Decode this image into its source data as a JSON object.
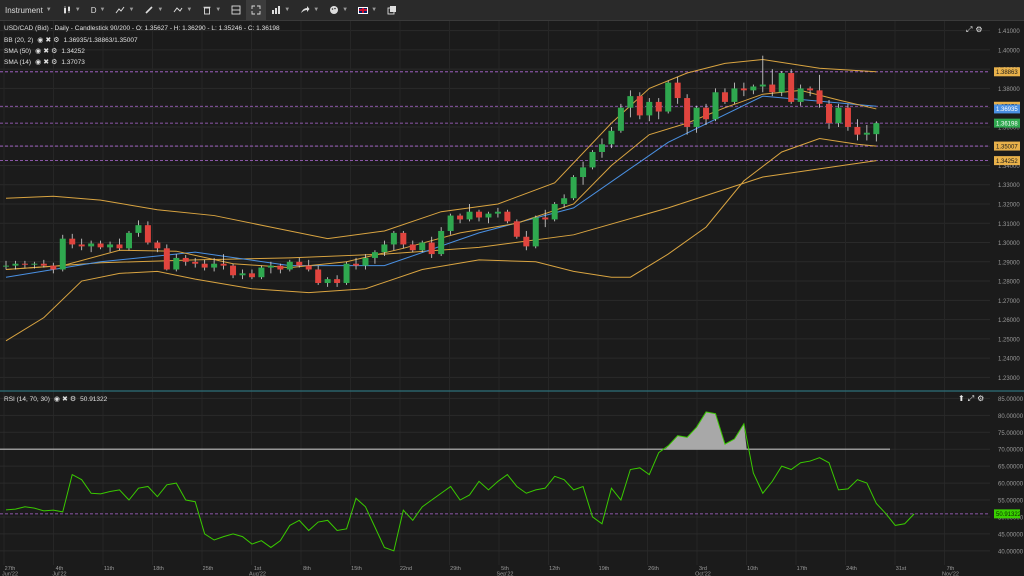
{
  "toolbar": {
    "instrument_label": "Instrument",
    "timeframe_label": "D",
    "colors": {
      "bg": "#2a2a2a"
    }
  },
  "price_legend": {
    "symbol_line": "USD/CAD (Bid) - Daily - Candlestick 90/200 - O: 1.35627 - H: 1.36290 - L: 1.35246 - C: 1.36198",
    "indicators": [
      {
        "name": "BB (20, 2)",
        "value": "1.36935/1.38863/1.35007"
      },
      {
        "name": "SMA (50)",
        "value": "1.34252"
      },
      {
        "name": "SMA (14)",
        "value": "1.37073"
      }
    ]
  },
  "rsi_legend": {
    "name": "RSI (14, 70, 30)",
    "value": "50.91322"
  },
  "price_axis": {
    "ticks": [
      "1.41000",
      "1.40000",
      "1.39000",
      "1.38000",
      "1.37000",
      "1.36000",
      "1.35000",
      "1.34000",
      "1.33000",
      "1.32000",
      "1.31000",
      "1.30000",
      "1.29000",
      "1.28000",
      "1.27000",
      "1.26000",
      "1.25000",
      "1.24000",
      "1.23000"
    ],
    "badges": [
      {
        "text": "1.38863",
        "price": 1.38863,
        "color": "#e8b14a",
        "fg": "#1a1a1a"
      },
      {
        "text": "1.37073",
        "price": 1.37073,
        "color": "#e8b14a",
        "fg": "#1a1a1a"
      },
      {
        "text": "1.36935",
        "price": 1.36935,
        "color": "#4a90e2",
        "fg": "#ffffff"
      },
      {
        "text": "1.36198",
        "price": 1.36198,
        "color": "#2fa84f",
        "fg": "#ffffff"
      },
      {
        "text": "1.35007",
        "price": 1.35007,
        "color": "#e8b14a",
        "fg": "#1a1a1a"
      },
      {
        "text": "1.34252",
        "price": 1.34252,
        "color": "#e8b14a",
        "fg": "#1a1a1a"
      }
    ]
  },
  "rsi_axis": {
    "ticks": [
      "85.00000",
      "80.00000",
      "75.00000",
      "70.00000",
      "65.00000",
      "60.00000",
      "55.00000",
      "50.00000",
      "45.00000",
      "40.00000"
    ],
    "badge": {
      "text": "50.91322",
      "value": 50.91322,
      "color": "#39d000"
    }
  },
  "time_axis": {
    "ticks": [
      {
        "day": "27th",
        "month": "Jun'22"
      },
      {
        "day": "4th",
        "month": "Jul'22"
      },
      {
        "day": "11th",
        "month": ""
      },
      {
        "day": "18th",
        "month": ""
      },
      {
        "day": "25th",
        "month": ""
      },
      {
        "day": "1st",
        "month": "Aug'22"
      },
      {
        "day": "8th",
        "month": ""
      },
      {
        "day": "15th",
        "month": ""
      },
      {
        "day": "22nd",
        "month": ""
      },
      {
        "day": "29th",
        "month": ""
      },
      {
        "day": "5th",
        "month": "Sep'22"
      },
      {
        "day": "12th",
        "month": ""
      },
      {
        "day": "19th",
        "month": ""
      },
      {
        "day": "26th",
        "month": ""
      },
      {
        "day": "3rd",
        "month": "Oct'22"
      },
      {
        "day": "10th",
        "month": ""
      },
      {
        "day": "17th",
        "month": ""
      },
      {
        "day": "24th",
        "month": ""
      },
      {
        "day": "31st",
        "month": ""
      },
      {
        "day": "7th",
        "month": "Nov'22"
      }
    ]
  },
  "chart_data": [
    {
      "type": "candlestick",
      "title": "USD/CAD (Bid) - Daily - Candlestick",
      "ylim": [
        1.225,
        1.415
      ],
      "candles": [
        [
          1.2875,
          1.2905,
          1.286,
          1.288
        ],
        [
          1.288,
          1.2905,
          1.286,
          1.289
        ],
        [
          1.289,
          1.2905,
          1.287,
          1.2885
        ],
        [
          1.2885,
          1.29,
          1.2865,
          1.289
        ],
        [
          1.289,
          1.291,
          1.287,
          1.288
        ],
        [
          1.288,
          1.2895,
          1.284,
          1.286
        ],
        [
          1.286,
          1.304,
          1.285,
          1.302
        ],
        [
          1.302,
          1.3045,
          1.297,
          1.299
        ],
        [
          1.299,
          1.302,
          1.296,
          1.298
        ],
        [
          1.298,
          1.301,
          1.295,
          1.2995
        ],
        [
          1.2995,
          1.301,
          1.2965,
          1.2975
        ],
        [
          1.2975,
          1.3005,
          1.295,
          1.299
        ],
        [
          1.299,
          1.302,
          1.296,
          1.297
        ],
        [
          1.297,
          1.306,
          1.296,
          1.305
        ],
        [
          1.305,
          1.3115,
          1.303,
          1.309
        ],
        [
          1.309,
          1.311,
          1.299,
          1.3
        ],
        [
          1.3,
          1.301,
          1.295,
          1.297
        ],
        [
          1.297,
          1.299,
          1.2855,
          1.286
        ],
        [
          1.286,
          1.294,
          1.285,
          1.292
        ],
        [
          1.292,
          1.2935,
          1.288,
          1.29
        ],
        [
          1.29,
          1.292,
          1.287,
          1.289
        ],
        [
          1.289,
          1.291,
          1.2855,
          1.287
        ],
        [
          1.287,
          1.292,
          1.285,
          1.289
        ],
        [
          1.289,
          1.294,
          1.286,
          1.288
        ],
        [
          1.288,
          1.289,
          1.2815,
          1.283
        ],
        [
          1.283,
          1.286,
          1.281,
          1.284
        ],
        [
          1.284,
          1.286,
          1.281,
          1.282
        ],
        [
          1.282,
          1.288,
          1.281,
          1.287
        ],
        [
          1.287,
          1.29,
          1.284,
          1.288
        ],
        [
          1.288,
          1.289,
          1.284,
          1.286
        ],
        [
          1.286,
          1.291,
          1.285,
          1.29
        ],
        [
          1.29,
          1.292,
          1.287,
          1.288
        ],
        [
          1.288,
          1.291,
          1.285,
          1.286
        ],
        [
          1.286,
          1.288,
          1.278,
          1.279
        ],
        [
          1.279,
          1.282,
          1.277,
          1.281
        ],
        [
          1.281,
          1.283,
          1.277,
          1.279
        ],
        [
          1.279,
          1.29,
          1.278,
          1.289
        ],
        [
          1.289,
          1.292,
          1.286,
          1.288
        ],
        [
          1.288,
          1.294,
          1.286,
          1.292
        ],
        [
          1.292,
          1.296,
          1.289,
          1.295
        ],
        [
          1.295,
          1.301,
          1.293,
          1.299
        ],
        [
          1.299,
          1.306,
          1.296,
          1.305
        ],
        [
          1.305,
          1.306,
          1.297,
          1.299
        ],
        [
          1.299,
          1.301,
          1.295,
          1.296
        ],
        [
          1.296,
          1.301,
          1.295,
          1.3
        ],
        [
          1.3,
          1.303,
          1.292,
          1.294
        ],
        [
          1.294,
          1.308,
          1.293,
          1.306
        ],
        [
          1.306,
          1.315,
          1.304,
          1.314
        ],
        [
          1.314,
          1.315,
          1.31,
          1.312
        ],
        [
          1.312,
          1.32,
          1.311,
          1.316
        ],
        [
          1.316,
          1.317,
          1.311,
          1.313
        ],
        [
          1.313,
          1.316,
          1.31,
          1.315
        ],
        [
          1.315,
          1.318,
          1.313,
          1.316
        ],
        [
          1.316,
          1.317,
          1.31,
          1.311
        ],
        [
          1.311,
          1.312,
          1.302,
          1.303
        ],
        [
          1.303,
          1.306,
          1.296,
          1.298
        ],
        [
          1.298,
          1.314,
          1.297,
          1.313
        ],
        [
          1.313,
          1.317,
          1.308,
          1.312
        ],
        [
          1.312,
          1.321,
          1.311,
          1.32
        ],
        [
          1.32,
          1.325,
          1.318,
          1.323
        ],
        [
          1.323,
          1.335,
          1.322,
          1.334
        ],
        [
          1.334,
          1.342,
          1.33,
          1.339
        ],
        [
          1.339,
          1.348,
          1.338,
          1.347
        ],
        [
          1.347,
          1.354,
          1.344,
          1.351
        ],
        [
          1.351,
          1.36,
          1.349,
          1.358
        ],
        [
          1.358,
          1.372,
          1.357,
          1.37
        ],
        [
          1.37,
          1.379,
          1.365,
          1.376
        ],
        [
          1.376,
          1.378,
          1.364,
          1.366
        ],
        [
          1.366,
          1.375,
          1.363,
          1.373
        ],
        [
          1.373,
          1.375,
          1.364,
          1.368
        ],
        [
          1.368,
          1.384,
          1.367,
          1.383
        ],
        [
          1.383,
          1.386,
          1.372,
          1.375
        ],
        [
          1.375,
          1.377,
          1.356,
          1.36
        ],
        [
          1.36,
          1.371,
          1.357,
          1.37
        ],
        [
          1.37,
          1.372,
          1.361,
          1.364
        ],
        [
          1.364,
          1.38,
          1.363,
          1.378
        ],
        [
          1.378,
          1.38,
          1.372,
          1.373
        ],
        [
          1.373,
          1.383,
          1.372,
          1.38
        ],
        [
          1.38,
          1.383,
          1.376,
          1.379
        ],
        [
          1.379,
          1.382,
          1.377,
          1.381
        ],
        [
          1.381,
          1.397,
          1.378,
          1.382
        ],
        [
          1.382,
          1.39,
          1.376,
          1.378
        ],
        [
          1.378,
          1.389,
          1.376,
          1.388
        ],
        [
          1.388,
          1.39,
          1.372,
          1.373
        ],
        [
          1.373,
          1.382,
          1.371,
          1.38
        ],
        [
          1.38,
          1.381,
          1.376,
          1.379
        ],
        [
          1.379,
          1.387,
          1.37,
          1.372
        ],
        [
          1.372,
          1.374,
          1.359,
          1.362
        ],
        [
          1.362,
          1.372,
          1.36,
          1.37
        ],
        [
          1.37,
          1.372,
          1.358,
          1.36
        ],
        [
          1.36,
          1.364,
          1.353,
          1.356
        ],
        [
          1.356,
          1.361,
          1.353,
          1.357
        ],
        [
          1.35627,
          1.3629,
          1.35246,
          1.36198
        ]
      ]
    },
    {
      "type": "line",
      "title": "RSI (14, 70, 30)",
      "ylim": [
        37,
        86
      ],
      "levels": [
        70,
        50.91322
      ],
      "values": [
        52.1,
        52.3,
        53.0,
        52.6,
        51.8,
        52.0,
        51.5,
        62.5,
        61.0,
        57.0,
        56.8,
        57.5,
        58.0,
        55.0,
        58.5,
        59.0,
        56.0,
        59.5,
        60.0,
        55.0,
        54.5,
        45.0,
        43.2,
        44.2,
        45.0,
        44.2,
        42.0,
        43.0,
        41.0,
        43.0,
        47.5,
        49.0,
        46.0,
        48.5,
        49.0,
        46.0,
        46.5,
        55.5,
        53.0,
        47.0,
        41.0,
        40.0,
        52.0,
        49.0,
        53.0,
        55.0,
        57.0,
        59.0,
        55.0,
        56.5,
        60.5,
        58.0,
        60.5,
        62.5,
        59.0,
        57.0,
        58.0,
        58.5,
        62.0,
        61.0,
        58.0,
        59.0,
        50.0,
        48.0,
        58.5,
        55.0,
        64.0,
        64.5,
        62.5,
        69.0,
        71.0,
        74.0,
        73.5,
        76.5,
        81.0,
        80.5,
        71.5,
        73.0,
        77.5,
        63.0,
        57.0,
        60.5,
        65.0,
        64.0,
        66.0,
        66.5,
        67.5,
        66.0,
        58.0,
        58.3,
        61.0,
        60.0,
        54.0,
        51.0,
        47.5,
        48.0,
        50.91322
      ],
      "colors": {
        "line": "#39c900",
        "overbought_fill": "#a8a8a8"
      }
    },
    {
      "type": "line",
      "title": "Indicator overlays",
      "series": [
        {
          "name": "SMA (50)",
          "x": [
            0,
            10,
            20,
            30,
            40,
            50,
            60,
            70,
            80,
            92
          ],
          "values": [
            1.286,
            1.2895,
            1.291,
            1.292,
            1.294,
            1.2975,
            1.304,
            1.318,
            1.334,
            1.34252
          ],
          "color": "#d9a441"
        },
        {
          "name": "SMA (14)",
          "x": [
            0,
            10,
            20,
            30,
            40,
            50,
            60,
            70,
            80,
            92
          ],
          "values": [
            1.282,
            1.29,
            1.295,
            1.288,
            1.288,
            1.305,
            1.318,
            1.352,
            1.376,
            1.37073
          ],
          "color": "#4a90e2"
        },
        {
          "name": "BB upper",
          "x": [
            0,
            5,
            10,
            16,
            22,
            28,
            34,
            40,
            46,
            52,
            58,
            64,
            68,
            72,
            76,
            80,
            86,
            92
          ],
          "values": [
            1.323,
            1.324,
            1.322,
            1.317,
            1.314,
            1.308,
            1.302,
            1.306,
            1.316,
            1.32,
            1.331,
            1.362,
            1.38,
            1.388,
            1.393,
            1.395,
            1.3905,
            1.38863
          ],
          "color": "#d9a441"
        },
        {
          "name": "BB middle",
          "x": [
            0,
            6,
            12,
            18,
            24,
            30,
            36,
            42,
            48,
            54,
            60,
            64,
            68,
            72,
            76,
            80,
            84,
            88,
            92
          ],
          "values": [
            1.286,
            1.288,
            1.296,
            1.2955,
            1.289,
            1.287,
            1.29,
            1.297,
            1.305,
            1.31,
            1.32,
            1.34,
            1.356,
            1.362,
            1.37,
            1.377,
            1.379,
            1.374,
            1.36935
          ],
          "color": "#d9a441"
        },
        {
          "name": "BB lower",
          "x": [
            0,
            4,
            8,
            12,
            16,
            20,
            26,
            32,
            38,
            44,
            50,
            56,
            60,
            64,
            66,
            70,
            74,
            78,
            82,
            86,
            90,
            92
          ],
          "values": [
            1.249,
            1.261,
            1.28,
            1.284,
            1.285,
            1.281,
            1.276,
            1.274,
            1.276,
            1.286,
            1.291,
            1.29,
            1.285,
            1.282,
            1.282,
            1.294,
            1.308,
            1.332,
            1.347,
            1.354,
            1.351,
            1.35007
          ],
          "color": "#d9a441"
        }
      ],
      "price_lines": [
        1.38863,
        1.37073,
        1.36198,
        1.35007,
        1.34252
      ]
    }
  ]
}
